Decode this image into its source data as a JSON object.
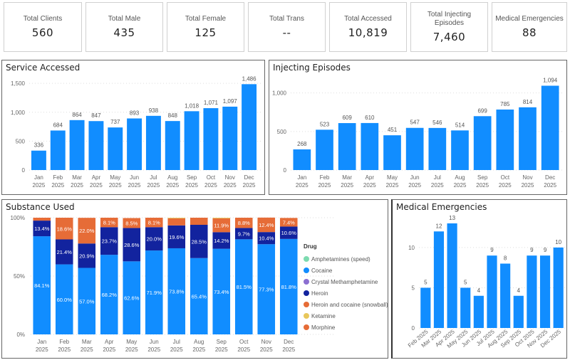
{
  "kpis": [
    {
      "label": "Total Clients",
      "value": "560"
    },
    {
      "label": "Total Male",
      "value": "435"
    },
    {
      "label": "Total Female",
      "value": "125"
    },
    {
      "label": "Total Trans",
      "value": "--"
    },
    {
      "label": "Total Accessed",
      "value": "10,819"
    },
    {
      "label": "Total Injecting Episodes",
      "value": "7,460"
    },
    {
      "label": "Medical Emergencies",
      "value": "88"
    }
  ],
  "colors": {
    "bar": "#118DFF",
    "amphetamines": "#7DDBB0",
    "cocaine": "#118DFF",
    "crystal_meth": "#8C6FD1",
    "heroin": "#12239E",
    "snowball": "#E66C37",
    "ketamine": "#E8C75B",
    "morphine": "#E66C37"
  },
  "chart_data": [
    {
      "type": "bar",
      "title": "Service Accessed",
      "categories": [
        "Jan 2025",
        "Feb 2025",
        "Mar 2025",
        "Apr 2025",
        "May 2025",
        "Jun 2025",
        "Jul 2025",
        "Aug 2025",
        "Sep 2025",
        "Oct 2025",
        "Nov 2025",
        "Dec 2025"
      ],
      "values": [
        336,
        684,
        864,
        847,
        737,
        893,
        938,
        848,
        1018,
        1071,
        1097,
        1486
      ],
      "value_labels": [
        "336",
        "684",
        "864",
        "847",
        "737",
        "893",
        "938",
        "848",
        "1,018",
        "1,071",
        "1,097",
        "1,486"
      ],
      "yticks": [
        0,
        500,
        1000,
        1500
      ],
      "ytick_labels": [
        "0",
        "500",
        "1,000",
        "1,500"
      ],
      "ylim": [
        0,
        1650
      ]
    },
    {
      "type": "bar",
      "title": "Injecting Episodes",
      "categories": [
        "Jan 2025",
        "Feb 2025",
        "Mar 2025",
        "Apr 2025",
        "May 2025",
        "Jun 2025",
        "Jul 2025",
        "Aug 2025",
        "Sep 2025",
        "Oct 2025",
        "Nov 2025",
        "Dec 2025"
      ],
      "values": [
        268,
        523,
        609,
        610,
        451,
        547,
        546,
        514,
        699,
        785,
        814,
        1094
      ],
      "value_labels": [
        "268",
        "523",
        "609",
        "610",
        "451",
        "547",
        "546",
        "514",
        "699",
        "785",
        "814",
        "1,094"
      ],
      "yticks": [
        0,
        500,
        1000
      ],
      "ytick_labels": [
        "0",
        "500",
        "1,000"
      ],
      "ylim": [
        0,
        1200
      ]
    },
    {
      "type": "bar",
      "stacked": "100%",
      "title": "Substance Used",
      "categories": [
        "Jan 2025",
        "Feb 2025",
        "Mar 2025",
        "Apr 2025",
        "May 2025",
        "Jun 2025",
        "Jul 2025",
        "Aug 2025",
        "Sep 2025",
        "Oct 2025",
        "Nov 2025",
        "Dec 2025"
      ],
      "series": [
        {
          "name": "Cocaine",
          "values": [
            84.1,
            60.0,
            57.0,
            68.2,
            62.6,
            71.9,
            73.8,
            65.4,
            73.4,
            81.5,
            77.3,
            81.8
          ]
        },
        {
          "name": "Heroin",
          "values": [
            13.4,
            21.4,
            20.9,
            23.7,
            28.6,
            20.0,
            19.6,
            28.5,
            14.2,
            9.7,
            10.4,
            10.6
          ]
        },
        {
          "name": "Heroin and cocaine (snowball)",
          "values": [
            2.5,
            18.6,
            22.0,
            8.1,
            8.5,
            8.1,
            6.1,
            6.1,
            11.9,
            8.8,
            12.4,
            7.4
          ]
        },
        {
          "name": "Ketamine",
          "values": [
            0,
            0,
            0,
            0,
            0,
            0,
            0.5,
            0,
            0.5,
            0,
            0,
            0
          ]
        }
      ],
      "show_labels_min": 7,
      "yticks": [
        0,
        50,
        100
      ],
      "ytick_labels": [
        "0%",
        "50%",
        "100%"
      ],
      "ylim": [
        0,
        100
      ],
      "legend": {
        "title": "Drug",
        "position": "right",
        "items": [
          "Amphetamines (speed)",
          "Cocaine",
          "Crystal Methamphetamine",
          "Heroin",
          "Heroin and cocaine (snowball)",
          "Ketamine",
          "Morphine"
        ]
      }
    },
    {
      "type": "bar",
      "title": "Medical Emergencies",
      "categories": [
        "Feb 2025",
        "Mar 2025",
        "Apr 2025",
        "May 2025",
        "Jun 2025",
        "Jul 2025",
        "Aug 2025",
        "Sep 2025",
        "Oct 2025",
        "Nov 2025",
        "Dec 2025"
      ],
      "values": [
        5,
        12,
        13,
        5,
        4,
        9,
        8,
        4,
        9,
        9,
        10
      ],
      "yticks": [
        0,
        5,
        10
      ],
      "ytick_labels": [
        "0",
        "5",
        "10"
      ],
      "ylim": [
        0,
        14.5
      ]
    }
  ]
}
